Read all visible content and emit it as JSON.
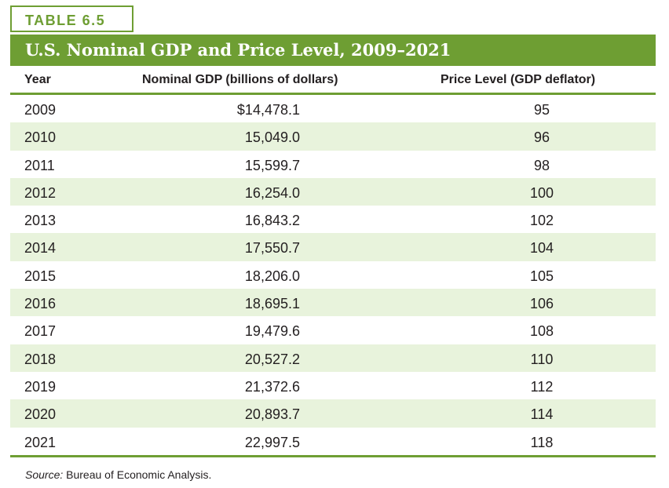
{
  "table_label": "TABLE 6.5",
  "title": "U.S. Nominal GDP and Price Level, 2009–2021",
  "columns": {
    "year": "Year",
    "gdp": "Nominal GDP (billions of dollars)",
    "price": "Price Level (GDP deflator)"
  },
  "rows": [
    {
      "year": "2009",
      "gdp": "$14,478.1",
      "price": "95"
    },
    {
      "year": "2010",
      "gdp": "15,049.0",
      "price": "96"
    },
    {
      "year": "2011",
      "gdp": "15,599.7",
      "price": "98"
    },
    {
      "year": "2012",
      "gdp": "16,254.0",
      "price": "100"
    },
    {
      "year": "2013",
      "gdp": "16,843.2",
      "price": "102"
    },
    {
      "year": "2014",
      "gdp": "17,550.7",
      "price": "104"
    },
    {
      "year": "2015",
      "gdp": "18,206.0",
      "price": "105"
    },
    {
      "year": "2016",
      "gdp": "18,695.1",
      "price": "106"
    },
    {
      "year": "2017",
      "gdp": "19,479.6",
      "price": "108"
    },
    {
      "year": "2018",
      "gdp": "20,527.2",
      "price": "110"
    },
    {
      "year": "2019",
      "gdp": "21,372.6",
      "price": "112"
    },
    {
      "year": "2020",
      "gdp": "20,893.7",
      "price": "114"
    },
    {
      "year": "2021",
      "gdp": "22,997.5",
      "price": "118"
    }
  ],
  "source": {
    "label": "Source:",
    "text": "Bureau of Economic Analysis."
  },
  "colors": {
    "accent": "#6e9e33",
    "row_shade": "#e8f3dc",
    "text": "#231f20"
  }
}
